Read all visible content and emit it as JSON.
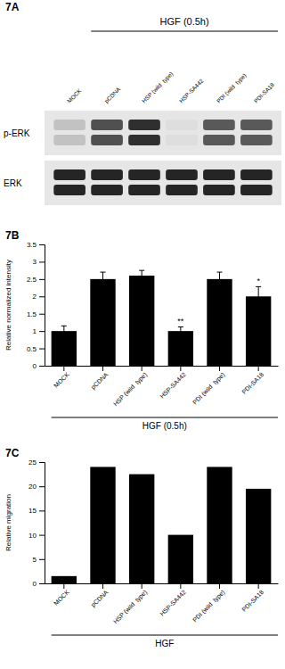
{
  "chart_data": [
    {
      "type": "blot",
      "title": "7A",
      "annotations": [
        {
          "text": "HGF (0.5h)"
        }
      ],
      "categories": [
        "MOCK",
        "pCDNA",
        "HSP (wild  type)",
        "HSP-SA442",
        "PDI (wild  type)",
        "PDI-SA18"
      ],
      "series": [
        {
          "name": "p-ERK",
          "values": [
            0.35,
            0.75,
            0.85,
            0.22,
            0.72,
            0.72
          ]
        },
        {
          "name": "ERK",
          "values": [
            0.88,
            0.88,
            0.88,
            0.88,
            0.88,
            0.88
          ]
        }
      ]
    },
    {
      "type": "bar",
      "title": "7B",
      "categories": [
        "MOCK",
        "pCDNA",
        "HSP (wild  type)",
        "HSP-SA442",
        "PDI (wild  type)",
        "PDI-SA18"
      ],
      "values": [
        1.0,
        2.5,
        2.6,
        1.0,
        2.5,
        2.0
      ],
      "errors": [
        0.15,
        0.2,
        0.15,
        0.12,
        0.2,
        0.28
      ],
      "ylabel": "Relative normalized intensity",
      "ylim": [
        0,
        3.5
      ],
      "yticks": [
        0,
        0.5,
        1,
        1.5,
        2,
        2.5,
        3,
        3.5
      ],
      "color": "#000000",
      "annotations": [
        {
          "text": "**",
          "category": "HSP-SA442"
        },
        {
          "text": "*",
          "category": "PDI-SA18"
        },
        {
          "text": "HGF (0.5h)"
        }
      ]
    },
    {
      "type": "bar",
      "title": "7C",
      "categories": [
        "MOCK",
        "pCDNA",
        "HSP (wild  type)",
        "HSP-SA442",
        "PDI (wild  type)",
        "PDI-SA18"
      ],
      "values": [
        1.5,
        24.0,
        22.5,
        10.0,
        24.0,
        19.5
      ],
      "ylabel": "Relative migration",
      "ylim": [
        0,
        25
      ],
      "yticks": [
        0,
        5,
        10,
        15,
        20,
        25
      ],
      "color": "#000000",
      "annotations": [
        {
          "text": "HGF"
        }
      ]
    }
  ]
}
